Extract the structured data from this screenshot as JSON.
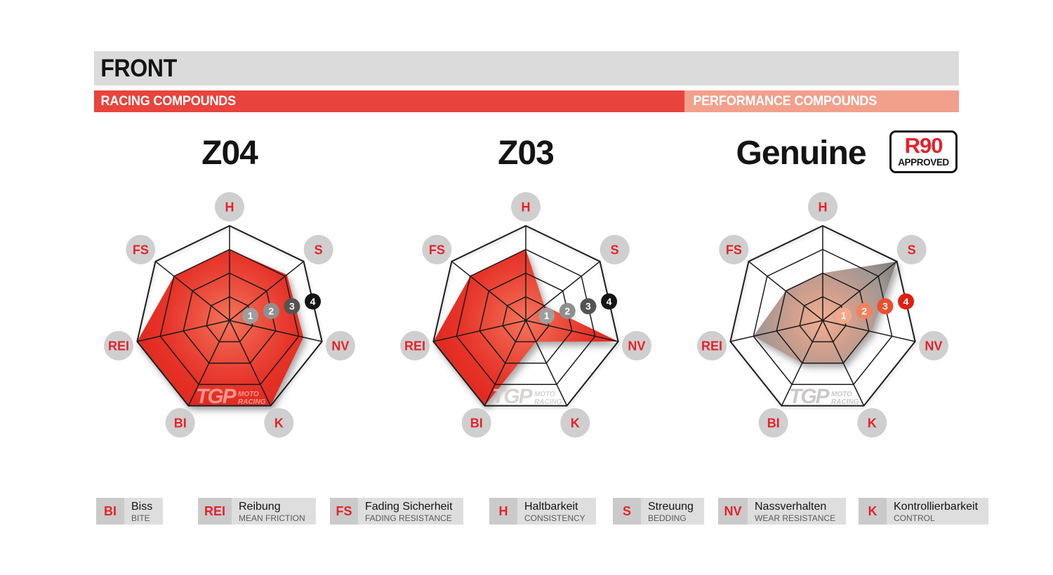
{
  "header": {
    "section_label": "FRONT",
    "left_banner": "RACING COMPOUNDS",
    "right_banner": "PERFORMANCE COMPOUNDS"
  },
  "badge": {
    "label": "R90",
    "sublabel": "APPROVED"
  },
  "watermark": {
    "brand": "TGP",
    "line1": "MOTO",
    "line2": "RACING"
  },
  "scale_labels": [
    "1",
    "2",
    "3",
    "4"
  ],
  "colors": {
    "header_bg": "#DBDBDB",
    "header_text": "#141414",
    "racing_banner_bg": "#E8433C",
    "performance_banner_bg": "#F2A08C",
    "banner_text": "#FFFFFF",
    "axis_circle": "#CFCFCF",
    "axis_text": "#E4222B",
    "grid_stroke": "#1B1B1B",
    "legend_abbr_bg": "#CACACA",
    "legend_text_bg": "#DEDEDE",
    "legend_abbr_text": "#E4222B",
    "legend_de_text": "#141414",
    "legend_en_text": "#5A5A5A"
  },
  "chart_data": [
    {
      "type": "radar",
      "title": "Z04",
      "category": "RACING COMPOUNDS",
      "axes": [
        "H",
        "S",
        "NV",
        "K",
        "BI",
        "REI",
        "FS"
      ],
      "range": [
        0,
        4
      ],
      "values": [
        3,
        3.1,
        3.2,
        4,
        4,
        4,
        3
      ],
      "rings": 4,
      "fill_gradient": [
        "#F4755C",
        "#EC5140",
        "#E63229",
        "#E1291F"
      ],
      "marker_colors": [
        "#9E9E9E",
        "#8F8F8F",
        "#555251",
        "#161412"
      ],
      "watermark_color": "rgba(255,235,230,0.55)"
    },
    {
      "type": "radar",
      "title": "Z03",
      "category": "RACING COMPOUNDS",
      "axes": [
        "H",
        "S",
        "NV",
        "K",
        "BI",
        "REI",
        "FS"
      ],
      "range": [
        0,
        4
      ],
      "values": [
        3,
        1,
        4,
        1,
        4,
        4,
        3
      ],
      "rings": 4,
      "fill_gradient": [
        "#F4755C",
        "#EC5140",
        "#E63229",
        "#E1291F"
      ],
      "marker_colors": [
        "#9E9E9E",
        "#8F8F8F",
        "#555251",
        "#161412"
      ],
      "watermark_color": "rgba(205,200,198,0.8)"
    },
    {
      "type": "radar",
      "title": "Genuine",
      "category": "PERFORMANCE COMPOUNDS",
      "badge": "R90 APPROVED",
      "axes": [
        "H",
        "S",
        "NV",
        "K",
        "BI",
        "REI",
        "FS"
      ],
      "range": [
        0,
        4
      ],
      "values": [
        2,
        4,
        2.1,
        2,
        2,
        3,
        2
      ],
      "rings": 4,
      "fill_gradient": [
        "#F2AE92",
        "#CD9E8D",
        "#A09794",
        "#7C7A79"
      ],
      "marker_colors": [
        "#F5A78C",
        "#F2815F",
        "#EC4D2F",
        "#E01F10"
      ],
      "watermark_color": "rgba(185,182,180,0.75)"
    }
  ],
  "legend": [
    {
      "abbr": "BI",
      "de": "Biss",
      "en": "BITE"
    },
    {
      "abbr": "REI",
      "de": "Reibung",
      "en": "MEAN FRICTION"
    },
    {
      "abbr": "FS",
      "de": "Fading Sicherheit",
      "en": "FADING RESISTANCE"
    },
    {
      "abbr": "H",
      "de": "Haltbarkeit",
      "en": "CONSISTENCY"
    },
    {
      "abbr": "S",
      "de": "Streuung",
      "en": "BEDDING"
    },
    {
      "abbr": "NV",
      "de": "Nassverhalten",
      "en": "WEAR RESISTANCE"
    },
    {
      "abbr": "K",
      "de": "Kontrollierbarkeit",
      "en": "CONTROL"
    }
  ]
}
